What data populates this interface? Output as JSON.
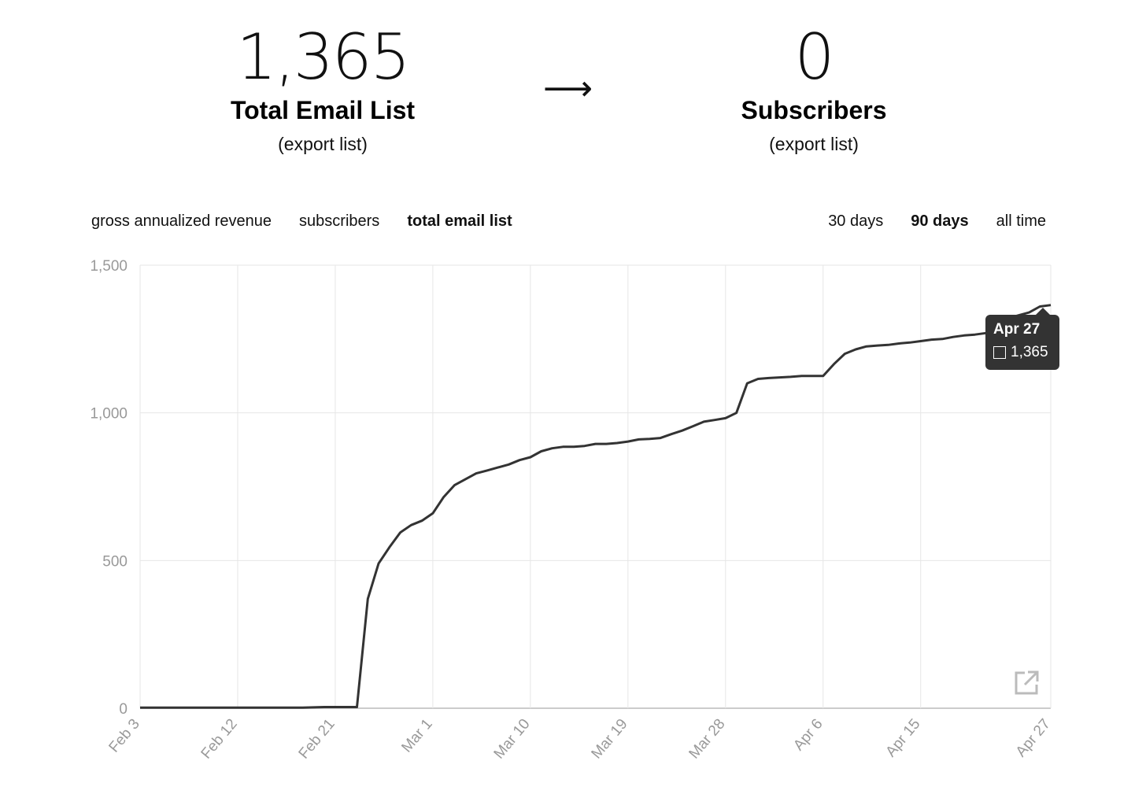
{
  "stats": {
    "total": {
      "value": "1,365",
      "label": "Total Email List",
      "link": "(export list)"
    },
    "arrow": "⟶",
    "subscribers": {
      "value": "0",
      "label": "Subscribers",
      "link": "(export list)"
    }
  },
  "metric_tabs": [
    {
      "label": "gross annualized revenue",
      "active": false
    },
    {
      "label": "subscribers",
      "active": false
    },
    {
      "label": "total email list",
      "active": true
    }
  ],
  "range_tabs": [
    {
      "label": "30 days",
      "active": false
    },
    {
      "label": "90 days",
      "active": true
    },
    {
      "label": "all time",
      "active": false
    }
  ],
  "tooltip": {
    "date": "Apr 27",
    "value": "1,365"
  },
  "icons": {
    "export": "external-link-icon"
  },
  "colors": {
    "line": "#333333",
    "grid": "#e6e6e6",
    "axis_text": "#999999",
    "tooltip_bg": "#333333"
  },
  "chart_data": {
    "type": "line",
    "x_type": "date",
    "x": [
      "2024-02-03",
      "2024-02-04",
      "2024-02-05",
      "2024-02-06",
      "2024-02-07",
      "2024-02-08",
      "2024-02-09",
      "2024-02-10",
      "2024-02-11",
      "2024-02-12",
      "2024-02-13",
      "2024-02-14",
      "2024-02-15",
      "2024-02-16",
      "2024-02-17",
      "2024-02-18",
      "2024-02-19",
      "2024-02-20",
      "2024-02-21",
      "2024-02-22",
      "2024-02-23",
      "2024-02-24",
      "2024-02-25",
      "2024-02-26",
      "2024-02-27",
      "2024-02-28",
      "2024-02-29",
      "2024-03-01",
      "2024-03-02",
      "2024-03-03",
      "2024-03-04",
      "2024-03-05",
      "2024-03-06",
      "2024-03-07",
      "2024-03-08",
      "2024-03-09",
      "2024-03-10",
      "2024-03-11",
      "2024-03-12",
      "2024-03-13",
      "2024-03-14",
      "2024-03-15",
      "2024-03-16",
      "2024-03-17",
      "2024-03-18",
      "2024-03-19",
      "2024-03-20",
      "2024-03-21",
      "2024-03-22",
      "2024-03-23",
      "2024-03-24",
      "2024-03-25",
      "2024-03-26",
      "2024-03-27",
      "2024-03-28",
      "2024-03-29",
      "2024-03-30",
      "2024-03-31",
      "2024-04-01",
      "2024-04-02",
      "2024-04-03",
      "2024-04-04",
      "2024-04-05",
      "2024-04-06",
      "2024-04-07",
      "2024-04-08",
      "2024-04-09",
      "2024-04-10",
      "2024-04-11",
      "2024-04-12",
      "2024-04-13",
      "2024-04-14",
      "2024-04-15",
      "2024-04-16",
      "2024-04-17",
      "2024-04-18",
      "2024-04-19",
      "2024-04-20",
      "2024-04-21",
      "2024-04-22",
      "2024-04-23",
      "2024-04-24",
      "2024-04-25",
      "2024-04-26",
      "2024-04-27"
    ],
    "series": [
      {
        "values": [
          2,
          2,
          2,
          2,
          2,
          2,
          2,
          2,
          2,
          2,
          2,
          2,
          2,
          2,
          2,
          2,
          3,
          4,
          4,
          4,
          4,
          370,
          490,
          545,
          595,
          620,
          635,
          660,
          715,
          755,
          775,
          795,
          805,
          815,
          825,
          840,
          850,
          870,
          880,
          885,
          885,
          888,
          895,
          895,
          898,
          903,
          910,
          912,
          915,
          928,
          940,
          955,
          970,
          976,
          982,
          1000,
          1100,
          1115,
          1118,
          1120,
          1122,
          1125,
          1125,
          1125,
          1165,
          1200,
          1215,
          1225,
          1228,
          1230,
          1235,
          1238,
          1243,
          1248,
          1250,
          1257,
          1262,
          1265,
          1270,
          1290,
          1320,
          1330,
          1340,
          1360,
          1365
        ]
      }
    ],
    "x_ticks": [
      "Feb 3",
      "Feb 12",
      "Feb 21",
      "Mar 1",
      "Mar 10",
      "Mar 19",
      "Mar 28",
      "Apr 6",
      "Apr 15",
      "Apr 27"
    ],
    "x_tick_dates": [
      "2024-02-03",
      "2024-02-12",
      "2024-02-21",
      "2024-03-01",
      "2024-03-10",
      "2024-03-19",
      "2024-03-28",
      "2024-04-06",
      "2024-04-15",
      "2024-04-27"
    ],
    "y_ticks": [
      "0",
      "500",
      "1,000",
      "1,500"
    ],
    "y_tick_values": [
      0,
      500,
      1000,
      1500
    ],
    "ylim": [
      0,
      1500
    ],
    "grid": true,
    "legend": false
  }
}
